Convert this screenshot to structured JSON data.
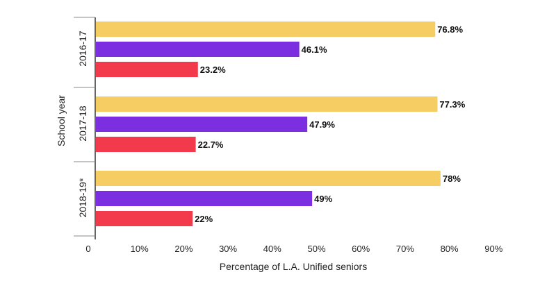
{
  "chart_data": {
    "type": "bar",
    "orientation": "horizontal",
    "categories": [
      "2016-17",
      "2017-18",
      "2018-19*"
    ],
    "series": [
      {
        "values": [
          76.8,
          77.3,
          78
        ],
        "labels": [
          "76.8%",
          "77.3%",
          "78%"
        ],
        "color": "#f5cd62"
      },
      {
        "values": [
          46.1,
          47.9,
          49
        ],
        "labels": [
          "46.1%",
          "47.9%",
          "49%"
        ],
        "color": "#7b2fe0"
      },
      {
        "values": [
          23.2,
          22.7,
          22
        ],
        "labels": [
          "23.2%",
          "22.7%",
          "22%"
        ],
        "color": "#f23a4c"
      }
    ],
    "xlabel": "Percentage of L.A. Unified seniors",
    "ylabel": "School year",
    "xlim": [
      0,
      90
    ],
    "xticks": [
      0,
      10,
      20,
      30,
      40,
      50,
      60,
      70,
      80,
      90
    ],
    "xtick_labels": [
      "0",
      "10%",
      "20%",
      "30%",
      "40%",
      "50%",
      "60%",
      "70%",
      "80%",
      "90%"
    ],
    "grid": false,
    "legend": "none"
  }
}
